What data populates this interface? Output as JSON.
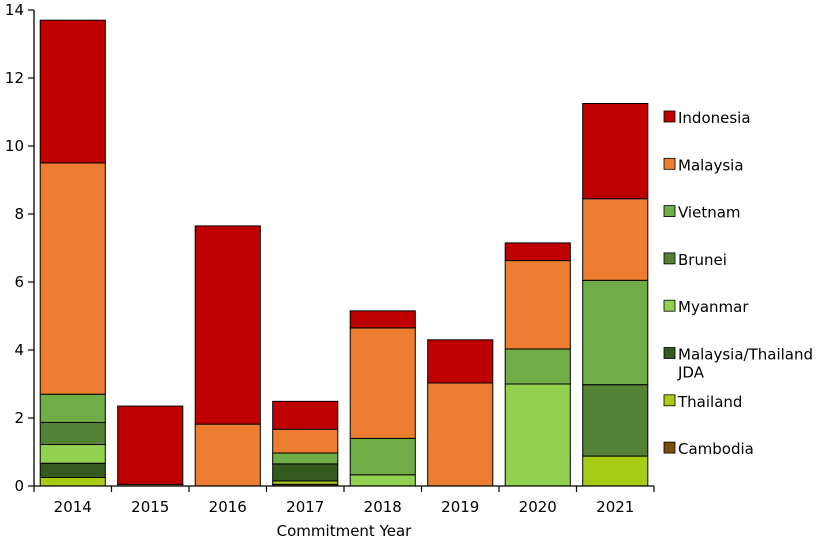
{
  "chart_data": {
    "type": "bar",
    "stacked": true,
    "categories": [
      "2014",
      "2015",
      "2016",
      "2017",
      "2018",
      "2019",
      "2020",
      "2021"
    ],
    "xlabel": "Commitment Year",
    "ylabel": "",
    "ylim": [
      0,
      14
    ],
    "yticks": [
      0,
      2,
      4,
      6,
      8,
      10,
      12,
      14
    ],
    "grid": false,
    "legend_position": "right",
    "series": [
      {
        "name": "Cambodia",
        "color": "#7a4a10",
        "values": [
          0,
          0,
          0,
          0.05,
          0,
          0,
          0,
          0
        ]
      },
      {
        "name": "Thailand",
        "color": "#a8cc14",
        "values": [
          0.25,
          0,
          0,
          0.1,
          0,
          0,
          0,
          0.88
        ]
      },
      {
        "name": "Malaysia/Thailand JDA",
        "color": "#355a20",
        "values": [
          0.42,
          0,
          0,
          0.5,
          0,
          0,
          0,
          0
        ]
      },
      {
        "name": "Myanmar",
        "color": "#92d050",
        "values": [
          0.55,
          0,
          0,
          0,
          0.33,
          0,
          3.0,
          0
        ]
      },
      {
        "name": "Brunei",
        "color": "#538135",
        "values": [
          0.65,
          0,
          0,
          0,
          0,
          0,
          0,
          2.1
        ]
      },
      {
        "name": "Vietnam",
        "color": "#70ad47",
        "values": [
          0.83,
          0,
          0,
          0.32,
          1.07,
          0,
          1.03,
          3.07
        ]
      },
      {
        "name": "Malaysia",
        "color": "#ed7d31",
        "values": [
          6.8,
          0.05,
          1.82,
          0.7,
          3.25,
          3.03,
          2.6,
          2.4
        ]
      },
      {
        "name": "Indonesia",
        "color": "#c00000",
        "values": [
          4.2,
          2.3,
          5.83,
          0.82,
          0.5,
          1.27,
          0.52,
          2.8
        ]
      }
    ],
    "legend_order": [
      "Indonesia",
      "Malaysia",
      "Vietnam",
      "Brunei",
      "Myanmar",
      "Malaysia/Thailand JDA",
      "Thailand",
      "Cambodia"
    ]
  }
}
